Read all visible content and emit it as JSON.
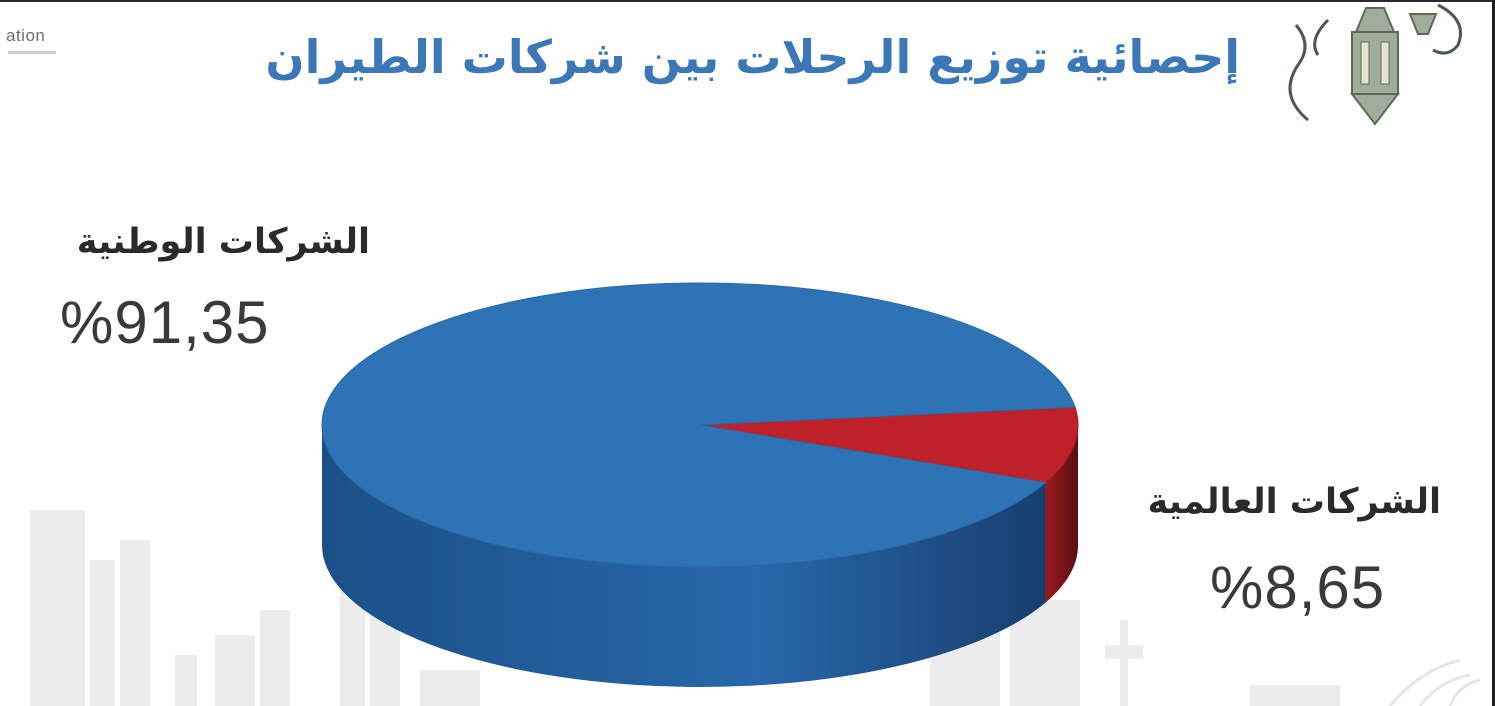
{
  "header": {
    "corner_tag": "ation",
    "title": "إحصائية توزيع الرحلات بين شركات الطيران"
  },
  "decor": {
    "lantern": "ramadan-lantern-icon",
    "background": "city-skyline-watermark"
  },
  "colors": {
    "title": "#3c78b8",
    "national_top": "#2e73b6",
    "national_side": "#1f5795",
    "international_top": "#c0202a",
    "international_side": "#7e1518"
  },
  "chart_data": {
    "type": "pie",
    "title": "إحصائية توزيع الرحلات بين شركات الطيران",
    "slices": [
      {
        "label": "الشركات الوطنية",
        "value": 91.35,
        "display": "%91,35",
        "color": "#2e73b6"
      },
      {
        "label": "الشركات العالمية",
        "value": 8.65,
        "display": "%8,65",
        "color": "#c0202a"
      }
    ]
  }
}
